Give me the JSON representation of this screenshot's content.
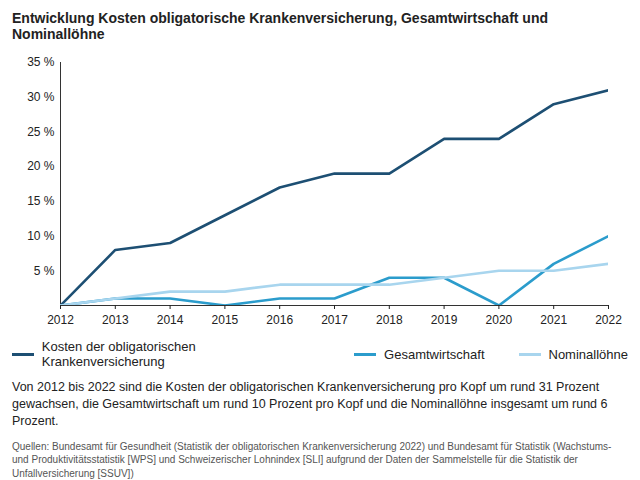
{
  "chart_data": {
    "type": "line",
    "title": "Entwicklung Kosten obligatorische Krankenversicherung, Gesamtwirtschaft und Nominallöhne",
    "caption": "Von 2012 bis 2022 sind die Kosten der obligatorischen Krankenversicherung pro Kopf um rund 31 Prozent gewachsen, die Gesamtwirtschaft um rund 10 Prozent pro Kopf und die Nominallöhne insgesamt um rund 6 Prozent.",
    "source": "Quellen: Bundesamt für Gesundheit (Statistik der obligatorischen Krankenversicherung 2022) und Bundesamt für Statistik (Wachstums- und Produktivitätsstatistik [WPS] und Schweizerischer Lohnindex [SLI] aufgrund der Daten der Sammelstelle für die Statistik der Unfallversicherung [SSUV])",
    "x": [
      2012,
      2013,
      2014,
      2015,
      2016,
      2017,
      2018,
      2019,
      2020,
      2021,
      2022
    ],
    "series": [
      {
        "name": "Kosten der obligatorischen Krankenversicherung",
        "color": "#1d4f73",
        "values": [
          0,
          8,
          9,
          13,
          17,
          19,
          19,
          24,
          24,
          29,
          31
        ]
      },
      {
        "name": "Gesamtwirtschaft",
        "color": "#2b9ccc",
        "values": [
          0,
          1,
          1,
          0,
          1,
          1,
          4,
          4,
          0,
          6,
          10
        ]
      },
      {
        "name": "Nominallöhne",
        "color": "#a8d5ee",
        "values": [
          0,
          1,
          2,
          2,
          3,
          3,
          3,
          4,
          5,
          5,
          6
        ]
      }
    ],
    "xlim": [
      2012,
      2022
    ],
    "xticks": [
      2012,
      2013,
      2014,
      2015,
      2016,
      2017,
      2018,
      2019,
      2020,
      2021,
      2022
    ],
    "ylim": [
      0,
      35
    ],
    "yticks": [
      {
        "value": 5,
        "label": "5 %"
      },
      {
        "value": 10,
        "label": "10 %"
      },
      {
        "value": 15,
        "label": "15 %"
      },
      {
        "value": 20,
        "label": "20 %"
      },
      {
        "value": 25,
        "label": "25 %"
      },
      {
        "value": 30,
        "label": "30 %"
      },
      {
        "value": 35,
        "label": "35 %"
      }
    ],
    "grid": false,
    "legend": "bottom"
  }
}
